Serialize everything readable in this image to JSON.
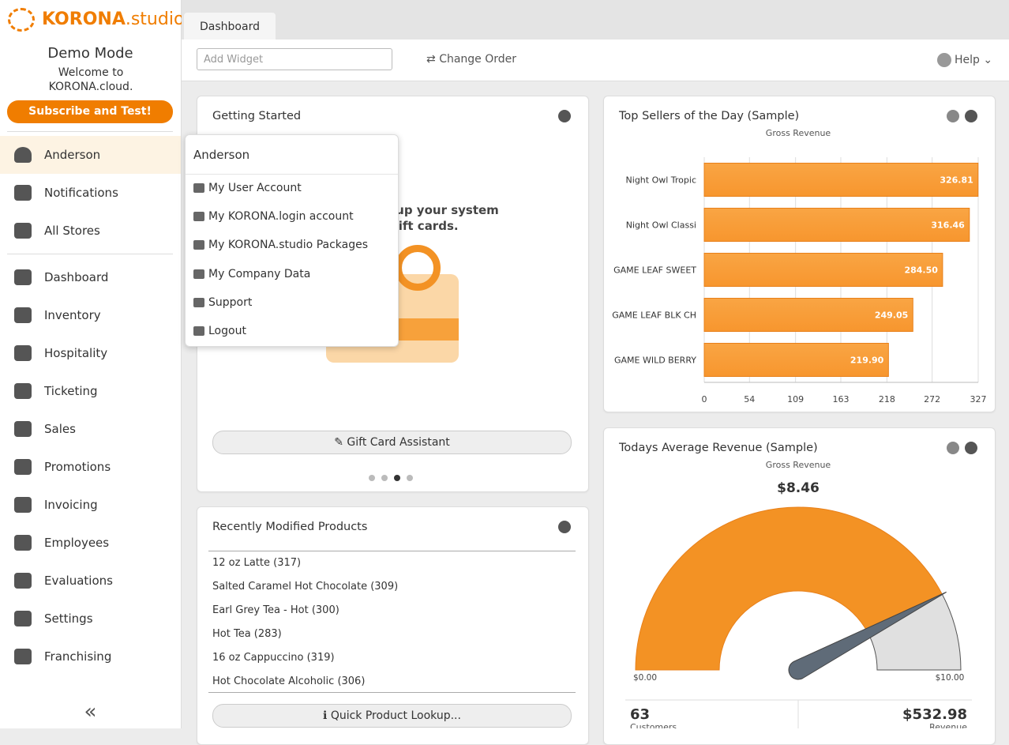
{
  "sidebar": {
    "brand": "KORONA",
    "brand_suffix": ".studio",
    "demo_title": "Demo Mode",
    "welcome": "Welcome to KORONA.cloud.",
    "subscribe": "Subscribe and Test!",
    "user": "Anderson",
    "top_nav": [
      "Notifications",
      "All Stores"
    ],
    "nav": [
      "Dashboard",
      "Inventory",
      "Hospitality",
      "Ticketing",
      "Sales",
      "Promotions",
      "Invoicing",
      "Employees",
      "Evaluations",
      "Settings",
      "Franchising"
    ],
    "collapse": "«"
  },
  "tabs": [
    "Dashboard"
  ],
  "toolbar": {
    "add_widget": "Add Widget",
    "change_order": "Change Order",
    "help": "Help"
  },
  "user_menu": {
    "title": "Anderson",
    "items": [
      "My User Account",
      "My KORONA.login account",
      "My KORONA.studio Packages",
      "My Company Data",
      "Support",
      "Logout"
    ]
  },
  "getting_started": {
    "title": "Getting Started",
    "text_line1": "tup your system",
    "text_line2": "gift cards.",
    "button": "Gift Card Assistant"
  },
  "recent_products": {
    "title": "Recently Modified Products",
    "items": [
      "12 oz Latte (317)",
      "Salted Caramel Hot Chocolate (309)",
      "Earl Grey Tea - Hot (300)",
      "Hot Tea (283)",
      "16 oz Cappuccino (319)",
      "Hot Chocolate Alcoholic (306)"
    ],
    "button": "Quick Product Lookup..."
  },
  "top_sellers": {
    "title": "Top Sellers of the Day (Sample)",
    "chart_data": {
      "type": "bar",
      "orientation": "horizontal",
      "subtitle": "Gross Revenue",
      "categories": [
        "Night Owl Tropic",
        "Night Owl Classi",
        "GAME LEAF SWEET",
        "GAME LEAF BLK CH",
        "GAME WILD BERRY"
      ],
      "values": [
        326.81,
        316.46,
        284.5,
        249.05,
        219.9
      ],
      "value_labels": [
        "326.81",
        "316.46",
        "284.50",
        "249.05",
        "219.90"
      ],
      "color": "#f7962e",
      "xlim": [
        0,
        327
      ],
      "xticks": [
        0,
        54,
        109,
        163,
        218,
        272,
        327
      ],
      "grid": true
    }
  },
  "avg_revenue": {
    "title": "Todays Average Revenue (Sample)",
    "chart_data": {
      "type": "gauge",
      "subtitle": "Gross Revenue",
      "values": [
        8.46
      ],
      "value_labels": [
        "$8.46"
      ],
      "color": "#f39224",
      "ylim": [
        0,
        10
      ],
      "yticks": [
        {
          "value": 0,
          "label": "$0.00"
        },
        {
          "value": 10,
          "label": "$10.00"
        }
      ]
    },
    "stats": [
      {
        "value": 63,
        "label": "Customers"
      },
      {
        "value": 532.98,
        "value_label": "$532.98",
        "label": "Revenue"
      }
    ]
  }
}
